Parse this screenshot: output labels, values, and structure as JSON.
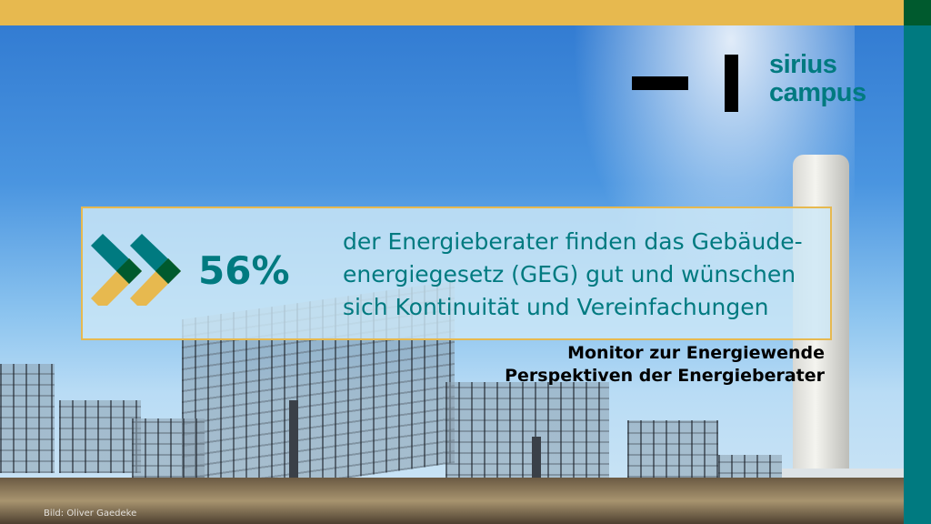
{
  "logo": {
    "line1": "sirius",
    "line2": "campus"
  },
  "stat": {
    "value": "56%",
    "icon": "double-chevron-right-icon"
  },
  "statement": "der Energieberater finden das Gebäude-energiegesetz (GEG) gut und wünschen sich Kontinuität und Vereinfachungen",
  "subtitle": {
    "line1": "Monitor zur Energiewende",
    "line2": "Perspektiven der Energieberater"
  },
  "photo_credit": "Bild: Oliver Gaedeke",
  "colors": {
    "gold": "#e7b94f",
    "teal": "#007a80",
    "dark_green": "#005a2e"
  }
}
